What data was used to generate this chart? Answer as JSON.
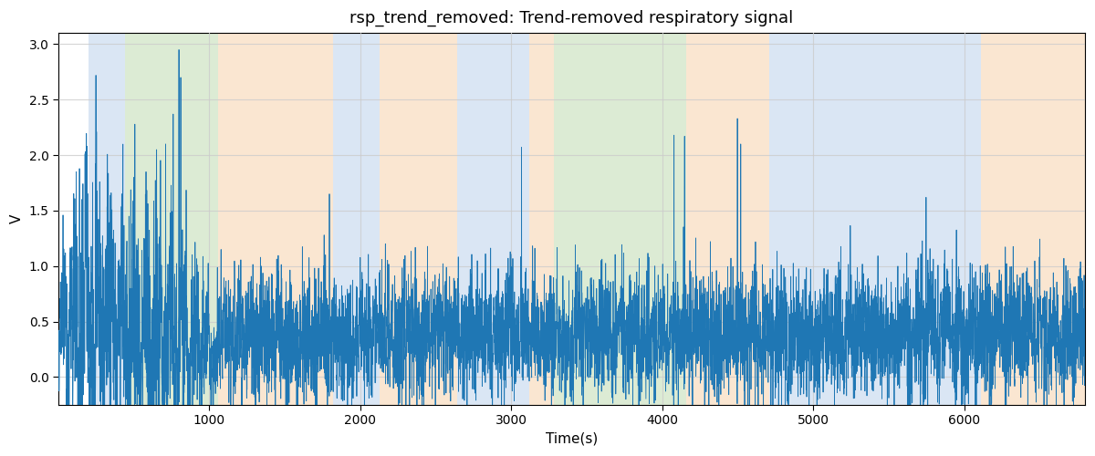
{
  "title": "rsp_trend_removed: Trend-removed respiratory signal",
  "xlabel": "Time(s)",
  "ylabel": "V",
  "ylim": [
    -0.25,
    3.1
  ],
  "xlim": [
    0,
    6800
  ],
  "line_color": "#1f77b4",
  "line_width": 0.6,
  "bg_color": "white",
  "axes_bg_color": "white",
  "grid_color": "#cccccc",
  "grid_alpha": 0.8,
  "xticks": [
    1000,
    2000,
    3000,
    4000,
    5000,
    6000
  ],
  "yticks": [
    0.0,
    0.5,
    1.0,
    1.5,
    2.0,
    2.5,
    3.0
  ],
  "colored_bands": [
    {
      "xmin": 200,
      "xmax": 440,
      "color": "#adc8e8",
      "alpha": 0.45
    },
    {
      "xmin": 440,
      "xmax": 1060,
      "color": "#b2d4a0",
      "alpha": 0.45
    },
    {
      "xmin": 1060,
      "xmax": 1820,
      "color": "#f5c99a",
      "alpha": 0.45
    },
    {
      "xmin": 1820,
      "xmax": 2130,
      "color": "#adc8e8",
      "alpha": 0.45
    },
    {
      "xmin": 2130,
      "xmax": 2640,
      "color": "#f5c99a",
      "alpha": 0.45
    },
    {
      "xmin": 2640,
      "xmax": 3120,
      "color": "#adc8e8",
      "alpha": 0.45
    },
    {
      "xmin": 3120,
      "xmax": 3280,
      "color": "#f5c99a",
      "alpha": 0.45
    },
    {
      "xmin": 3280,
      "xmax": 4160,
      "color": "#b2d4a0",
      "alpha": 0.45
    },
    {
      "xmin": 4160,
      "xmax": 4710,
      "color": "#f5c99a",
      "alpha": 0.45
    },
    {
      "xmin": 4710,
      "xmax": 6110,
      "color": "#adc8e8",
      "alpha": 0.45
    },
    {
      "xmin": 6110,
      "xmax": 6800,
      "color": "#f5c99a",
      "alpha": 0.45
    }
  ],
  "title_fontsize": 13,
  "figsize": [
    12.0,
    5.0
  ],
  "dpi": 100
}
